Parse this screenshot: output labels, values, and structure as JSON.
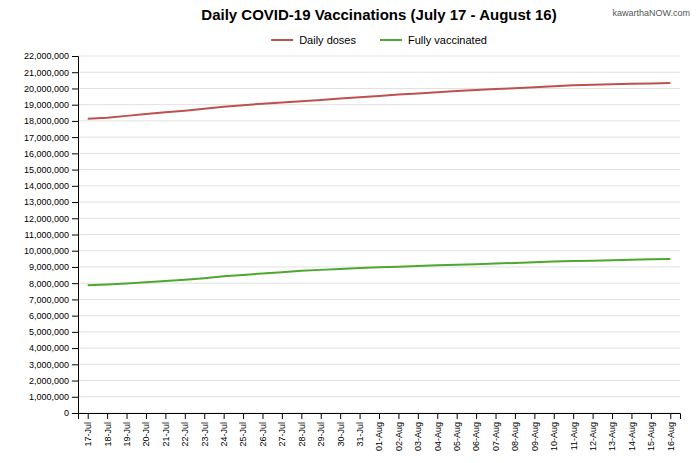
{
  "chart_data": {
    "type": "line",
    "title": "Daily COVID-19 Vaccinations (July 17 - August 16)",
    "annotations": [
      "kawarthaNOW.com"
    ],
    "categories": [
      "17-Jul",
      "18-Jul",
      "19-Jul",
      "20-Jul",
      "21-Jul",
      "22-Jul",
      "23-Jul",
      "24-Jul",
      "25-Jul",
      "26-Jul",
      "27-Jul",
      "28-Jul",
      "29-Jul",
      "30-Jul",
      "31-Jul",
      "01-Aug",
      "02-Aug",
      "03-Aug",
      "04-Aug",
      "05-Aug",
      "06-Aug",
      "07-Aug",
      "08-Aug",
      "09-Aug",
      "10-Aug",
      "11-Aug",
      "12-Aug",
      "13-Aug",
      "14-Aug",
      "15-Aug",
      "16-Aug"
    ],
    "series": [
      {
        "name": "Daily doses",
        "color": "#c0504d",
        "values": [
          18130000,
          18200000,
          18310000,
          18430000,
          18530000,
          18630000,
          18750000,
          18870000,
          18970000,
          19060000,
          19140000,
          19210000,
          19290000,
          19380000,
          19460000,
          19540000,
          19620000,
          19690000,
          19760000,
          19840000,
          19900000,
          19960000,
          20020000,
          20080000,
          20140000,
          20190000,
          20230000,
          20260000,
          20290000,
          20310000,
          20330000
        ]
      },
      {
        "name": "Fully vaccinated",
        "color": "#4ea72e",
        "values": [
          7870000,
          7920000,
          7980000,
          8050000,
          8130000,
          8210000,
          8310000,
          8420000,
          8510000,
          8600000,
          8680000,
          8760000,
          8820000,
          8870000,
          8930000,
          8980000,
          9020000,
          9060000,
          9100000,
          9130000,
          9170000,
          9210000,
          9250000,
          9290000,
          9330000,
          9360000,
          9390000,
          9420000,
          9450000,
          9470000,
          9490000
        ]
      }
    ],
    "ylim": [
      0,
      22000000
    ],
    "yticks": [
      0,
      {
        "value": 1000000,
        "label": "1,000,000"
      },
      {
        "value": 2000000,
        "label": "2,000,000"
      },
      {
        "value": 3000000,
        "label": "3,000,000"
      },
      {
        "value": 4000000,
        "label": "4,000,000"
      },
      {
        "value": 5000000,
        "label": "5,000,000"
      },
      {
        "value": 6000000,
        "label": "6,000,000"
      },
      {
        "value": 7000000,
        "label": "7,000,000"
      },
      {
        "value": 8000000,
        "label": "8,000,000"
      },
      {
        "value": 9000000,
        "label": "9,000,000"
      },
      {
        "value": 10000000,
        "label": "10,000,000"
      },
      {
        "value": 11000000,
        "label": "11,000,000"
      },
      {
        "value": 12000000,
        "label": "12,000,000"
      },
      {
        "value": 13000000,
        "label": "13,000,000"
      },
      {
        "value": 14000000,
        "label": "14,000,000"
      },
      {
        "value": 15000000,
        "label": "15,000,000"
      },
      {
        "value": 16000000,
        "label": "16,000,000"
      },
      {
        "value": 17000000,
        "label": "17,000,000"
      },
      {
        "value": 18000000,
        "label": "18,000,000"
      },
      {
        "value": 19000000,
        "label": "19,000,000"
      },
      {
        "value": 20000000,
        "label": "20,000,000"
      },
      {
        "value": 21000000,
        "label": "21,000,000"
      },
      {
        "value": 22000000,
        "label": "22,000,000"
      }
    ],
    "grid": true,
    "legend": "top"
  }
}
